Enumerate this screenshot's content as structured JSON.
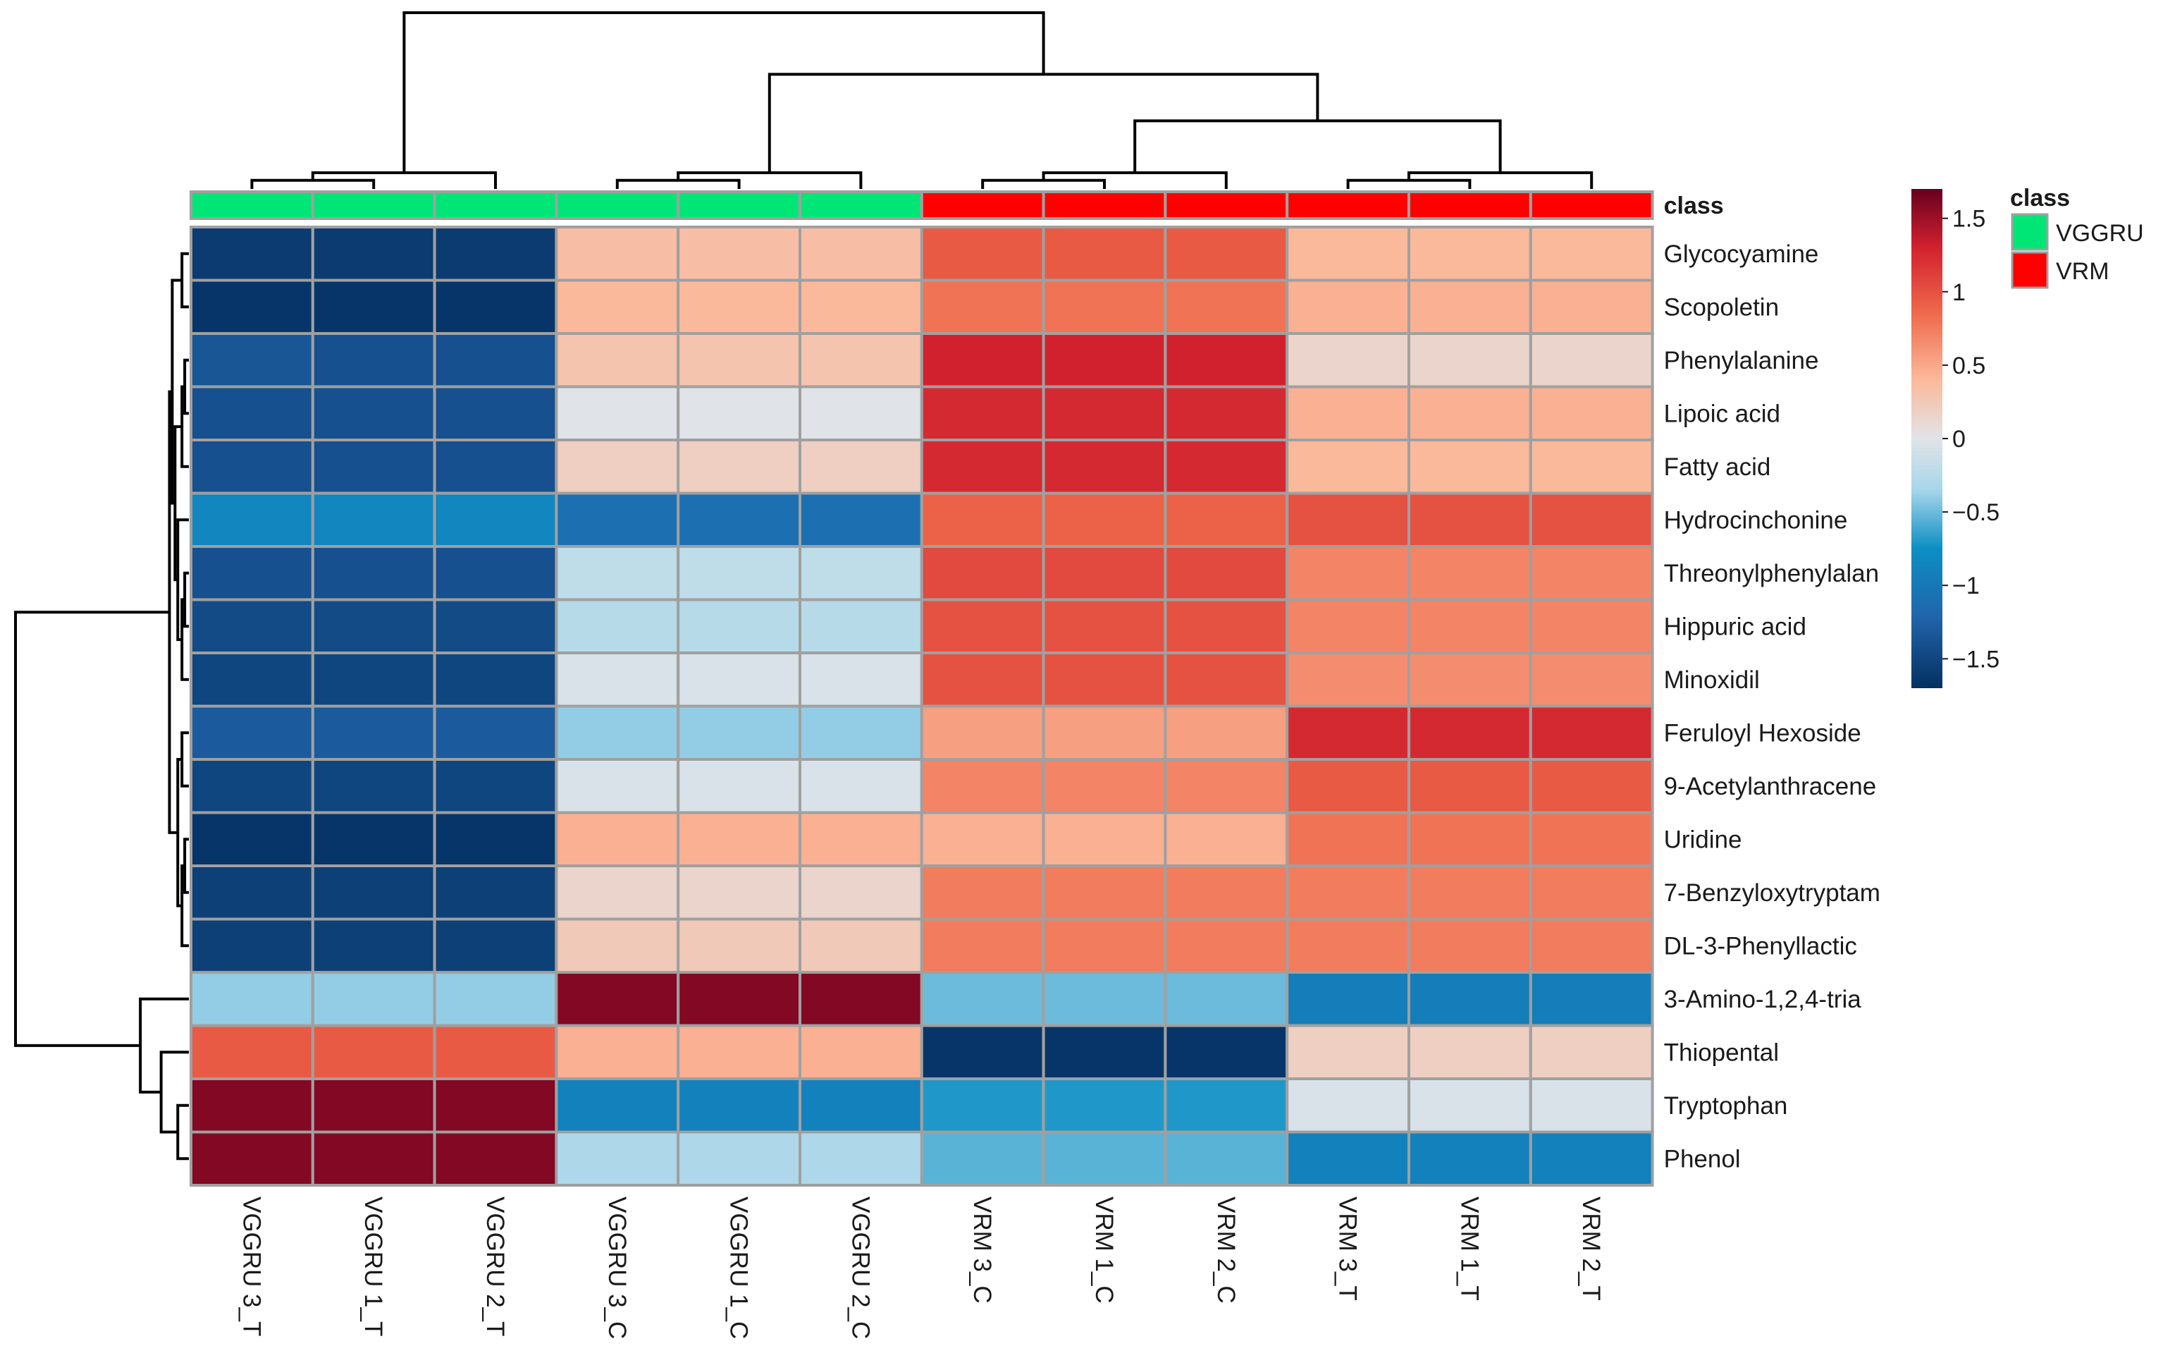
{
  "chart_data": {
    "type": "heatmap",
    "columns": [
      "VGGRU 3_T",
      "VGGRU 1_T",
      "VGGRU 2_T",
      "VGGRU 3_C",
      "VGGRU 1_C",
      "VGGRU 2_C",
      "VRM 3_C",
      "VRM 1_C",
      "VRM 2_C",
      "VRM 3_T",
      "VRM 1_T",
      "VRM 2_T"
    ],
    "column_class": [
      "VGGRU",
      "VGGRU",
      "VGGRU",
      "VGGRU",
      "VGGRU",
      "VGGRU",
      "VRM",
      "VRM",
      "VRM",
      "VRM",
      "VRM",
      "VRM"
    ],
    "rows": [
      "Glycocyamine",
      "Scopoletin",
      "Phenylalanine",
      "Lipoic acid",
      "Fatty acid",
      "Hydrocinchonine",
      "Threonylphenylalan",
      "Hippuric acid",
      "Minoxidil",
      "Feruloyl Hexoside",
      "9-Acetylanthracene",
      "Uridine",
      "7-Benzyloxytryptam",
      "DL-3-Phenyllactic",
      "3-Amino-1,2,4-tria",
      "Thiopental",
      "Tryptophan",
      "Phenol"
    ],
    "values": [
      [
        -1.6,
        -1.6,
        -1.6,
        0.35,
        0.35,
        0.35,
        0.95,
        0.95,
        0.95,
        0.4,
        0.4,
        0.4
      ],
      [
        -1.65,
        -1.65,
        -1.65,
        0.4,
        0.4,
        0.4,
        0.8,
        0.8,
        0.8,
        0.45,
        0.45,
        0.45
      ],
      [
        -1.35,
        -1.4,
        -1.4,
        0.3,
        0.3,
        0.3,
        1.3,
        1.3,
        1.3,
        0.15,
        0.15,
        0.15
      ],
      [
        -1.4,
        -1.4,
        -1.4,
        0.0,
        0.0,
        0.0,
        1.25,
        1.25,
        1.25,
        0.45,
        0.45,
        0.45
      ],
      [
        -1.4,
        -1.4,
        -1.4,
        0.2,
        0.2,
        0.2,
        1.25,
        1.25,
        1.25,
        0.4,
        0.4,
        0.4
      ],
      [
        -0.85,
        -0.85,
        -0.85,
        -1.1,
        -1.1,
        -1.1,
        0.9,
        0.9,
        0.9,
        1.0,
        1.0,
        1.0
      ],
      [
        -1.4,
        -1.4,
        -1.4,
        -0.2,
        -0.2,
        -0.2,
        1.05,
        1.05,
        1.05,
        0.7,
        0.7,
        0.7
      ],
      [
        -1.45,
        -1.45,
        -1.45,
        -0.25,
        -0.25,
        -0.25,
        1.0,
        1.0,
        1.0,
        0.7,
        0.7,
        0.7
      ],
      [
        -1.5,
        -1.5,
        -1.5,
        -0.05,
        -0.05,
        -0.05,
        1.0,
        1.0,
        1.0,
        0.65,
        0.65,
        0.65
      ],
      [
        -1.3,
        -1.3,
        -1.3,
        -0.4,
        -0.4,
        -0.4,
        0.55,
        0.55,
        0.55,
        1.25,
        1.25,
        1.25
      ],
      [
        -1.5,
        -1.5,
        -1.5,
        -0.05,
        -0.05,
        -0.05,
        0.7,
        0.7,
        0.7,
        0.95,
        0.95,
        0.95
      ],
      [
        -1.65,
        -1.65,
        -1.65,
        0.45,
        0.45,
        0.45,
        0.45,
        0.45,
        0.45,
        0.8,
        0.8,
        0.8
      ],
      [
        -1.55,
        -1.55,
        -1.55,
        0.15,
        0.15,
        0.15,
        0.75,
        0.75,
        0.75,
        0.75,
        0.75,
        0.75
      ],
      [
        -1.55,
        -1.55,
        -1.55,
        0.25,
        0.25,
        0.25,
        0.75,
        0.75,
        0.75,
        0.75,
        0.75,
        0.75
      ],
      [
        -0.4,
        -0.4,
        -0.4,
        1.6,
        1.6,
        1.6,
        -0.5,
        -0.5,
        -0.5,
        -0.95,
        -0.95,
        -0.95
      ],
      [
        0.95,
        0.95,
        0.95,
        0.45,
        0.45,
        0.45,
        -1.65,
        -1.65,
        -1.65,
        0.2,
        0.2,
        0.2
      ],
      [
        1.6,
        1.6,
        1.6,
        -0.9,
        -0.9,
        -0.9,
        -0.7,
        -0.7,
        -0.7,
        -0.05,
        -0.05,
        -0.05
      ],
      [
        1.6,
        1.6,
        1.6,
        -0.3,
        -0.3,
        -0.3,
        -0.55,
        -0.55,
        -0.55,
        -0.9,
        -0.9,
        -0.9
      ]
    ],
    "color_scale": {
      "range": [
        -1.7,
        1.7
      ],
      "ticks": [
        1.5,
        1,
        0.5,
        0,
        -0.5,
        -1,
        -1.5
      ],
      "tick_labels": [
        "1.5",
        "1",
        "0.5",
        "0",
        "−0.5",
        "−1",
        "−1.5"
      ],
      "stops": [
        {
          "v": -1.7,
          "c": "#053061"
        },
        {
          "v": -1.2,
          "c": "#2166ac"
        },
        {
          "v": -0.75,
          "c": "#0c8fc4"
        },
        {
          "v": -0.35,
          "c": "#a6d6ea"
        },
        {
          "v": 0.0,
          "c": "#e0e4e8"
        },
        {
          "v": 0.4,
          "c": "#fbb99b"
        },
        {
          "v": 0.85,
          "c": "#ef6a4c"
        },
        {
          "v": 1.3,
          "c": "#d2212e"
        },
        {
          "v": 1.7,
          "c": "#67001f"
        }
      ]
    },
    "annotation": {
      "title": "class",
      "legend": [
        {
          "label": "VGGRU",
          "color": "#00e676"
        },
        {
          "label": "VRM",
          "color": "#ff0000"
        }
      ]
    },
    "dendrogram": {
      "columns": [
        [
          0,
          1,
          0.08
        ],
        [
          12,
          2,
          0.15
        ],
        [
          3,
          4,
          0.08
        ],
        [
          14,
          5,
          0.15
        ],
        [
          6,
          7,
          0.08
        ],
        [
          16,
          8,
          0.15
        ],
        [
          9,
          10,
          0.08
        ],
        [
          18,
          11,
          0.15
        ],
        [
          17,
          19,
          0.63
        ],
        [
          15,
          20,
          1.06
        ],
        [
          13,
          21,
          1.63
        ]
      ],
      "rows": [
        [
          0,
          1,
          0.05
        ],
        [
          2,
          3,
          0.03
        ],
        [
          19,
          4,
          0.05
        ],
        [
          6,
          7,
          0.03
        ],
        [
          21,
          8,
          0.05
        ],
        [
          22,
          5,
          0.08
        ],
        [
          20,
          23,
          0.1
        ],
        [
          18,
          24,
          0.12
        ],
        [
          9,
          10,
          0.05
        ],
        [
          11,
          12,
          0.03
        ],
        [
          27,
          13,
          0.05
        ],
        [
          26,
          28,
          0.08
        ],
        [
          25,
          29,
          0.14
        ],
        [
          16,
          17,
          0.08
        ],
        [
          15,
          31,
          0.2
        ],
        [
          14,
          32,
          0.35
        ],
        [
          30,
          33,
          1.25
        ]
      ]
    }
  }
}
